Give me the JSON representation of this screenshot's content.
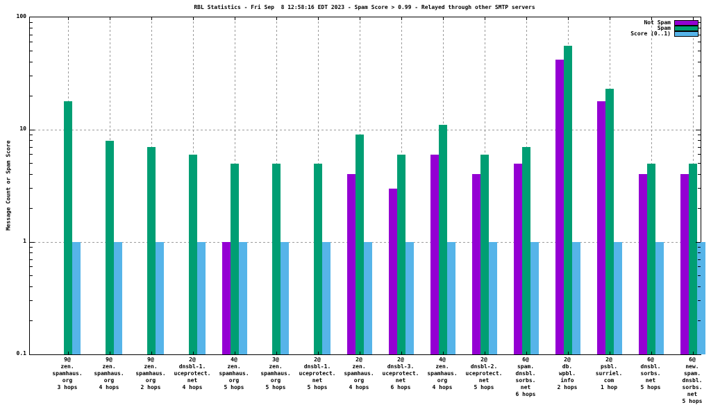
{
  "chart_data": {
    "type": "bar",
    "scale": "log",
    "title": "RBL Statistics - Fri Sep  8 12:58:16 EDT 2023 - Spam Score > 0.99 - Relayed through other SMTP servers",
    "xlabel": "",
    "ylabel": "Message Count or Spam Score",
    "ylim": [
      0.1,
      100
    ],
    "ytick_labels": [
      "100",
      "10",
      "1",
      "0.1"
    ],
    "grid": true,
    "legend_position": "top-right",
    "legend": [
      {
        "name": "Not Spam",
        "color": "#9400d3"
      },
      {
        "name": "Spam",
        "color": "#009e73"
      },
      {
        "name": "Score (0..1)",
        "color": "#56b4e9"
      }
    ],
    "categories": [
      [
        "9@",
        "zen.",
        "spamhaus.",
        "org",
        "3 hops"
      ],
      [
        "9@",
        "zen.",
        "spamhaus.",
        "org",
        "4 hops"
      ],
      [
        "9@",
        "zen.",
        "spamhaus.",
        "org",
        "2 hops"
      ],
      [
        "2@",
        "dnsbl-1.",
        "uceprotect.",
        "net",
        "4 hops"
      ],
      [
        "4@",
        "zen.",
        "spamhaus.",
        "org",
        "5 hops"
      ],
      [
        "3@",
        "zen.",
        "spamhaus.",
        "org",
        "5 hops"
      ],
      [
        "2@",
        "dnsbl-1.",
        "uceprotect.",
        "net",
        "5 hops"
      ],
      [
        "2@",
        "zen.",
        "spamhaus.",
        "org",
        "4 hops"
      ],
      [
        "2@",
        "dnsbl-3.",
        "uceprotect.",
        "net",
        "6 hops"
      ],
      [
        "4@",
        "zen.",
        "spamhaus.",
        "org",
        "4 hops"
      ],
      [
        "2@",
        "dnsbl-2.",
        "uceprotect.",
        "net",
        "5 hops"
      ],
      [
        "6@",
        "spam.",
        "dnsbl.",
        "sorbs.",
        "net",
        "6 hops"
      ],
      [
        "2@",
        "db.",
        "wpbl.",
        "info",
        "2 hops"
      ],
      [
        "2@",
        "psbl.",
        "surriel.",
        "com",
        "1 hop"
      ],
      [
        "6@",
        "dnsbl.",
        "sorbs.",
        "net",
        "5 hops"
      ],
      [
        "6@",
        "new.",
        "spam.",
        "dnsbl.",
        "sorbs.",
        "net",
        "5 hops"
      ]
    ],
    "series": [
      {
        "name": "Not Spam",
        "color": "#9400d3",
        "values": [
          0,
          0,
          0,
          0,
          1,
          0,
          0,
          4,
          3,
          6,
          4,
          5,
          42,
          18,
          4,
          4
        ]
      },
      {
        "name": "Spam",
        "color": "#009e73",
        "values": [
          18,
          8,
          7,
          6,
          5,
          5,
          5,
          9,
          6,
          11,
          6,
          7,
          56,
          23,
          5,
          5
        ]
      },
      {
        "name": "Score (0..1)",
        "color": "#56b4e9",
        "values": [
          1,
          1,
          1,
          1,
          1,
          1,
          1,
          1,
          1,
          1,
          1,
          1,
          1,
          1,
          1,
          1
        ]
      }
    ]
  }
}
